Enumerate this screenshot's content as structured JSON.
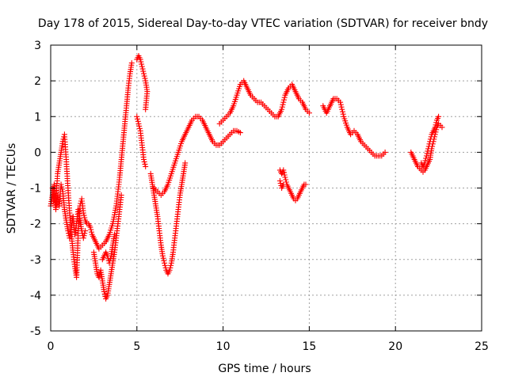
{
  "chart_data": {
    "type": "scatter",
    "title": "Day 178 of 2015, Sidereal Day-to-day VTEC variation (SDTVAR) for receiver bndy",
    "xlabel": "GPS time / hours",
    "ylabel": "SDTVAR / TECUs",
    "xlim": [
      0,
      25
    ],
    "ylim": [
      -5,
      3
    ],
    "xticks": [
      0,
      5,
      10,
      15,
      20,
      25
    ],
    "yticks": [
      -5,
      -4,
      -3,
      -2,
      -1,
      0,
      1,
      2,
      3
    ],
    "x_tick_labels": [
      "0",
      "5",
      "10",
      "15",
      "20",
      "25"
    ],
    "y_tick_labels": [
      "-5",
      "-4",
      "-3",
      "-2",
      "-1",
      "0",
      "1",
      "2",
      "3"
    ],
    "grid": true,
    "marker": "plus",
    "color": "#ff0000",
    "series": [
      {
        "segments": [
          [
            [
              0.0,
              -1.5
            ],
            [
              0.1,
              -1.2
            ],
            [
              0.2,
              -0.9
            ],
            [
              0.3,
              -1.4
            ],
            [
              0.4,
              -0.6
            ],
            [
              0.5,
              -0.3
            ],
            [
              0.6,
              0.0
            ],
            [
              0.7,
              0.3
            ],
            [
              0.8,
              0.5
            ],
            [
              0.9,
              -0.2
            ],
            [
              1.0,
              -1.0
            ],
            [
              1.1,
              -1.7
            ],
            [
              1.2,
              -2.3
            ],
            [
              1.3,
              -2.8
            ],
            [
              1.4,
              -3.2
            ],
            [
              1.5,
              -3.5
            ],
            [
              1.6,
              -2.2
            ],
            [
              1.7,
              -1.5
            ],
            [
              1.8,
              -1.3
            ],
            [
              1.9,
              -1.7
            ],
            [
              2.0,
              -1.9
            ],
            [
              2.1,
              -2.0
            ],
            [
              2.2,
              -2.0
            ],
            [
              2.3,
              -2.1
            ],
            [
              2.4,
              -2.3
            ],
            [
              2.6,
              -2.5
            ],
            [
              2.8,
              -2.7
            ],
            [
              3.0,
              -2.6
            ],
            [
              3.2,
              -2.5
            ],
            [
              3.4,
              -2.3
            ],
            [
              3.6,
              -2.0
            ],
            [
              3.8,
              -1.5
            ],
            [
              3.9,
              -1.1
            ],
            [
              4.0,
              -0.7
            ],
            [
              4.1,
              -0.2
            ],
            [
              4.2,
              0.3
            ],
            [
              4.3,
              0.8
            ],
            [
              4.4,
              1.3
            ],
            [
              4.5,
              1.8
            ],
            [
              4.6,
              2.2
            ],
            [
              4.7,
              2.5
            ]
          ],
          [
            [
              0.1,
              -1.0
            ],
            [
              0.2,
              -1.3
            ],
            [
              0.3,
              -1.6
            ],
            [
              0.4,
              -1.2
            ],
            [
              0.5,
              -1.5
            ],
            [
              0.6,
              -0.9
            ],
            [
              0.7,
              -1.1
            ],
            [
              0.8,
              -1.6
            ],
            [
              0.9,
              -1.9
            ],
            [
              1.0,
              -2.2
            ],
            [
              1.1,
              -2.4
            ],
            [
              1.2,
              -2.1
            ],
            [
              1.3,
              -1.8
            ],
            [
              1.4,
              -2.3
            ],
            [
              1.5,
              -2.0
            ],
            [
              1.6,
              -1.6
            ],
            [
              1.7,
              -1.9
            ],
            [
              1.8,
              -2.2
            ],
            [
              1.9,
              -2.4
            ],
            [
              2.0,
              -2.2
            ]
          ],
          [
            [
              2.5,
              -2.8
            ],
            [
              2.6,
              -3.1
            ],
            [
              2.7,
              -3.4
            ],
            [
              2.8,
              -3.5
            ],
            [
              2.9,
              -3.3
            ],
            [
              3.0,
              -3.6
            ],
            [
              3.1,
              -3.9
            ],
            [
              3.2,
              -4.1
            ],
            [
              3.3,
              -4.0
            ],
            [
              3.4,
              -3.7
            ],
            [
              3.5,
              -3.4
            ],
            [
              3.6,
              -3.1
            ],
            [
              3.7,
              -2.8
            ],
            [
              3.8,
              -2.4
            ],
            [
              3.9,
              -2.0
            ],
            [
              4.0,
              -1.6
            ],
            [
              4.1,
              -1.2
            ]
          ],
          [
            [
              3.0,
              -3.0
            ],
            [
              3.1,
              -2.9
            ],
            [
              3.2,
              -2.8
            ],
            [
              3.3,
              -2.9
            ],
            [
              3.4,
              -3.1
            ],
            [
              3.5,
              -2.9
            ],
            [
              3.6,
              -2.6
            ],
            [
              3.7,
              -2.3
            ]
          ],
          [
            [
              5.0,
              2.6
            ],
            [
              5.1,
              2.7
            ],
            [
              5.2,
              2.6
            ],
            [
              5.3,
              2.4
            ],
            [
              5.4,
              2.2
            ],
            [
              5.5,
              2.0
            ],
            [
              5.6,
              1.7
            ],
            [
              5.5,
              1.2
            ]
          ],
          [
            [
              5.0,
              1.0
            ],
            [
              5.1,
              0.8
            ],
            [
              5.2,
              0.6
            ],
            [
              5.3,
              0.2
            ],
            [
              5.4,
              -0.2
            ],
            [
              5.5,
              -0.4
            ]
          ],
          [
            [
              5.8,
              -0.6
            ],
            [
              5.9,
              -0.9
            ],
            [
              6.0,
              -1.2
            ],
            [
              6.1,
              -1.5
            ],
            [
              6.2,
              -1.8
            ],
            [
              6.3,
              -2.2
            ],
            [
              6.4,
              -2.6
            ],
            [
              6.5,
              -2.9
            ],
            [
              6.6,
              -3.1
            ],
            [
              6.7,
              -3.3
            ],
            [
              6.8,
              -3.4
            ],
            [
              6.9,
              -3.3
            ],
            [
              7.0,
              -3.1
            ],
            [
              7.1,
              -2.8
            ],
            [
              7.2,
              -2.4
            ],
            [
              7.3,
              -2.0
            ],
            [
              7.4,
              -1.6
            ],
            [
              7.5,
              -1.2
            ],
            [
              7.6,
              -0.9
            ],
            [
              7.7,
              -0.6
            ],
            [
              7.8,
              -0.3
            ]
          ],
          [
            [
              6.0,
              -1.0
            ],
            [
              6.2,
              -1.1
            ],
            [
              6.4,
              -1.2
            ],
            [
              6.6,
              -1.1
            ],
            [
              6.8,
              -0.9
            ],
            [
              7.0,
              -0.6
            ],
            [
              7.2,
              -0.3
            ],
            [
              7.4,
              0.0
            ],
            [
              7.6,
              0.3
            ],
            [
              7.8,
              0.5
            ],
            [
              8.0,
              0.7
            ],
            [
              8.2,
              0.9
            ],
            [
              8.4,
              1.0
            ],
            [
              8.6,
              1.0
            ],
            [
              8.8,
              0.9
            ],
            [
              9.0,
              0.7
            ],
            [
              9.2,
              0.5
            ],
            [
              9.4,
              0.3
            ],
            [
              9.6,
              0.2
            ],
            [
              9.8,
              0.2
            ],
            [
              10.0,
              0.3
            ],
            [
              10.2,
              0.4
            ],
            [
              10.4,
              0.5
            ],
            [
              10.6,
              0.6
            ],
            [
              10.8,
              0.6
            ],
            [
              11.0,
              0.55
            ]
          ],
          [
            [
              9.8,
              0.8
            ],
            [
              10.0,
              0.9
            ],
            [
              10.2,
              1.0
            ],
            [
              10.4,
              1.1
            ],
            [
              10.6,
              1.3
            ],
            [
              10.8,
              1.6
            ],
            [
              11.0,
              1.9
            ],
            [
              11.2,
              2.0
            ],
            [
              11.4,
              1.8
            ],
            [
              11.6,
              1.6
            ],
            [
              11.8,
              1.5
            ],
            [
              12.0,
              1.4
            ],
            [
              12.2,
              1.4
            ],
            [
              12.4,
              1.3
            ],
            [
              12.6,
              1.2
            ],
            [
              12.8,
              1.1
            ],
            [
              13.0,
              1.0
            ],
            [
              13.2,
              1.0
            ],
            [
              13.4,
              1.2
            ],
            [
              13.6,
              1.6
            ],
            [
              13.8,
              1.8
            ],
            [
              14.0,
              1.9
            ],
            [
              14.2,
              1.7
            ],
            [
              14.4,
              1.5
            ],
            [
              14.6,
              1.4
            ],
            [
              14.8,
              1.2
            ],
            [
              15.0,
              1.1
            ]
          ],
          [
            [
              13.3,
              -0.5
            ],
            [
              13.4,
              -0.6
            ],
            [
              13.5,
              -0.5
            ],
            [
              13.6,
              -0.7
            ],
            [
              13.7,
              -0.9
            ],
            [
              13.8,
              -1.0
            ],
            [
              13.9,
              -1.1
            ],
            [
              14.0,
              -1.2
            ],
            [
              14.1,
              -1.3
            ],
            [
              14.2,
              -1.35
            ],
            [
              14.3,
              -1.3
            ],
            [
              14.4,
              -1.2
            ],
            [
              14.5,
              -1.1
            ],
            [
              14.6,
              -1.0
            ],
            [
              14.7,
              -0.9
            ],
            [
              14.8,
              -0.9
            ]
          ],
          [
            [
              13.3,
              -0.8
            ],
            [
              13.4,
              -1.0
            ],
            [
              13.5,
              -0.9
            ]
          ],
          [
            [
              15.8,
              1.3
            ],
            [
              16.0,
              1.1
            ],
            [
              16.2,
              1.3
            ],
            [
              16.4,
              1.5
            ],
            [
              16.6,
              1.5
            ],
            [
              16.8,
              1.4
            ],
            [
              17.0,
              1.0
            ],
            [
              17.2,
              0.7
            ],
            [
              17.4,
              0.5
            ],
            [
              17.6,
              0.6
            ],
            [
              17.8,
              0.5
            ],
            [
              18.0,
              0.3
            ],
            [
              18.2,
              0.2
            ],
            [
              18.4,
              0.1
            ],
            [
              18.6,
              0.0
            ],
            [
              18.8,
              -0.1
            ],
            [
              19.0,
              -0.1
            ],
            [
              19.2,
              -0.1
            ],
            [
              19.4,
              0.0
            ]
          ],
          [
            [
              20.9,
              0.0
            ],
            [
              21.0,
              -0.1
            ],
            [
              21.1,
              -0.2
            ],
            [
              21.2,
              -0.3
            ],
            [
              21.3,
              -0.4
            ],
            [
              21.4,
              -0.45
            ],
            [
              21.5,
              -0.5
            ],
            [
              21.6,
              -0.55
            ],
            [
              21.7,
              -0.5
            ],
            [
              21.8,
              -0.4
            ],
            [
              21.9,
              -0.3
            ],
            [
              22.0,
              -0.2
            ],
            [
              22.1,
              0.1
            ],
            [
              22.2,
              0.3
            ],
            [
              22.3,
              0.5
            ],
            [
              22.4,
              0.7
            ],
            [
              22.5,
              0.8
            ],
            [
              22.6,
              0.75
            ],
            [
              22.7,
              0.7
            ]
          ],
          [
            [
              21.5,
              -0.3
            ],
            [
              21.6,
              -0.4
            ],
            [
              21.7,
              -0.3
            ],
            [
              21.8,
              -0.1
            ],
            [
              21.9,
              0.1
            ],
            [
              22.0,
              0.3
            ],
            [
              22.1,
              0.5
            ],
            [
              22.2,
              0.6
            ],
            [
              22.3,
              0.7
            ],
            [
              22.4,
              0.9
            ],
            [
              22.5,
              1.0
            ]
          ]
        ]
      }
    ]
  }
}
